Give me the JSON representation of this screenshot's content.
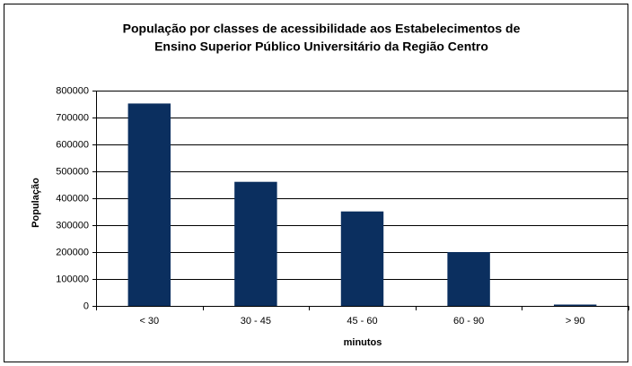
{
  "chart_data": {
    "type": "bar",
    "title": [
      "População por classes de acessibilidade aos Estabelecimentos de",
      "Ensino Superior Público Universitário da Região Centro"
    ],
    "x_label": "minutos",
    "y_label": "População",
    "categories": [
      "< 30",
      "30 - 45",
      "45 - 60",
      "60 - 90",
      "> 90"
    ],
    "values": [
      752000,
      461000,
      351000,
      200000,
      5000
    ],
    "color": "#0b2f5f",
    "ylim": [
      0,
      800000
    ],
    "yticks": [
      0,
      100000,
      200000,
      300000,
      400000,
      500000,
      600000,
      700000,
      800000
    ],
    "grid": true
  }
}
